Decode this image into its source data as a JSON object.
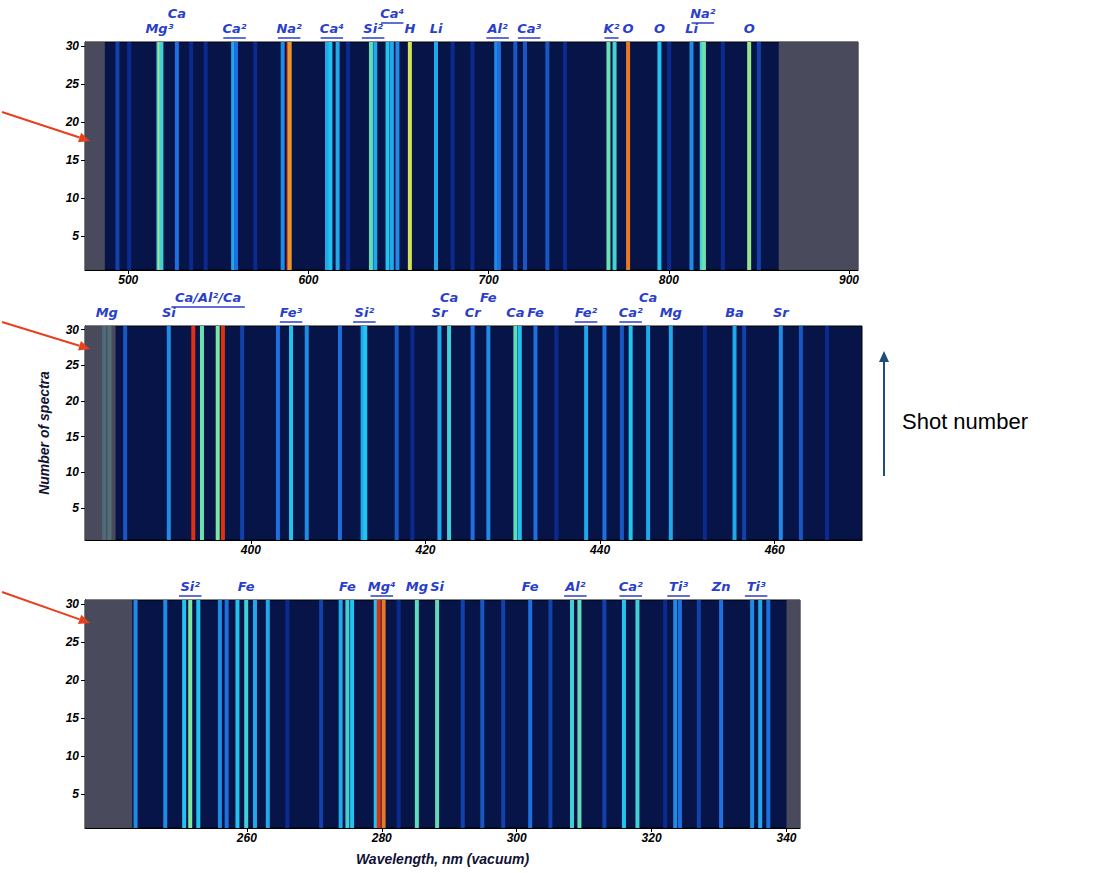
{
  "chart_data": [
    {
      "type": "heatmap",
      "xlim": [
        476,
        905
      ],
      "xticks": [
        500,
        600,
        700,
        800,
        900
      ],
      "ylim": [
        0.5,
        30.5
      ],
      "yticks": [
        5,
        10,
        15,
        20,
        25,
        30
      ],
      "intensity_range": [
        0,
        1
      ],
      "lines": {
        "wavelength": [
          494.0,
          500.5,
          516.7,
          517.3,
          518.4,
          527.0,
          534.9,
          543.0,
          558.2,
          559.8,
          570.5,
          585.7,
          589.0,
          589.6,
          610.3,
          612.2,
          616.2,
          622.0,
          634.7,
          637.1,
          643.9,
          646.3,
          649.4,
          656.3,
          670.8,
          680.0,
          691.0,
          704.2,
          705.7,
          714.8,
          720.2,
          732.6,
          742.4,
          766.5,
          769.9,
          777.4,
          794.8,
          800.2,
          812.6,
          818.3,
          819.5,
          830.0,
          844.6,
          850.0
        ],
        "intensity": [
          0.35,
          0.3,
          0.55,
          0.8,
          0.65,
          0.45,
          0.3,
          0.3,
          0.55,
          0.45,
          0.3,
          0.5,
          1,
          0.93,
          0.55,
          0.6,
          0.55,
          0.3,
          0.7,
          0.55,
          0.6,
          0.55,
          0.5,
          0.85,
          0.55,
          0.3,
          0.3,
          0.5,
          0.45,
          0.4,
          0.4,
          0.4,
          0.3,
          0.72,
          0.66,
          0.95,
          0.6,
          0.3,
          0.5,
          0.65,
          0.72,
          0.3,
          0.78,
          0.35
        ]
      },
      "masked": [
        [
          476,
          487
        ],
        [
          861,
          905
        ]
      ],
      "line_labels": [
        {
          "text": "Mg³",
          "x": 517.3
        },
        {
          "text": "Ca",
          "x": 527.0
        },
        {
          "text": "Ca²",
          "x": 559.0,
          "underline": true
        },
        {
          "text": "Na²",
          "x": 589.3,
          "underline": true
        },
        {
          "text": "Ca⁴",
          "x": 613.0,
          "underline": true
        },
        {
          "text": "Si²",
          "x": 635.9,
          "underline": true
        },
        {
          "text": "Ca⁴",
          "x": 646.5,
          "underline": true
        },
        {
          "text": "H",
          "x": 656.3
        },
        {
          "text": "Li",
          "x": 670.8
        },
        {
          "text": "Al²",
          "x": 705.0,
          "underline": true
        },
        {
          "text": "Ca³",
          "x": 722.5,
          "underline": true
        },
        {
          "text": "K²",
          "x": 768.2,
          "underline": true
        },
        {
          "text": "O",
          "x": 777.4
        },
        {
          "text": "O",
          "x": 794.8
        },
        {
          "text": "Li",
          "x": 812.6
        },
        {
          "text": "Na²",
          "x": 818.9,
          "underline": true
        },
        {
          "text": "O",
          "x": 844.6
        }
      ]
    },
    {
      "type": "heatmap",
      "xlim": [
        381,
        470
      ],
      "xticks": [
        400,
        420,
        440,
        460
      ],
      "ylim": [
        0.5,
        30.5
      ],
      "yticks": [
        5,
        10,
        15,
        20,
        25,
        30
      ],
      "ylabel": "Number of spectra",
      "annotation": "Shot number",
      "intensity_range": [
        0,
        1
      ],
      "lines": {
        "wavelength": [
          383.2,
          383.8,
          385.6,
          390.6,
          393.4,
          394.4,
          396.2,
          396.8,
          399.0,
          403.1,
          404.6,
          406.4,
          410.2,
          412.8,
          413.1,
          416.7,
          418.5,
          421.6,
          422.7,
          425.4,
          427.2,
          430.3,
          430.8,
          432.6,
          435.0,
          438.4,
          440.5,
          442.5,
          443.5,
          445.5,
          448.1,
          452.0,
          455.4,
          456.5,
          460.7,
          463.0,
          466.0
        ],
        "intensity": [
          0.6,
          0.65,
          0.4,
          0.5,
          1,
          0.72,
          0.75,
          1,
          0.35,
          0.45,
          0.6,
          0.5,
          0.45,
          0.55,
          0.6,
          0.4,
          0.3,
          0.55,
          0.65,
          0.45,
          0.5,
          0.7,
          0.6,
          0.45,
          0.3,
          0.55,
          0.45,
          0.4,
          0.6,
          0.55,
          0.55,
          0.3,
          0.55,
          0.35,
          0.5,
          0.4,
          0.3
        ]
      },
      "masked": [
        [
          381,
          384.5
        ]
      ],
      "line_labels": [
        {
          "text": "Mg",
          "x": 383.5
        },
        {
          "text": "Si",
          "x": 390.6
        },
        {
          "text": "Ca/Al²/Ca",
          "x": 395.1,
          "underline": true
        },
        {
          "text": "Fe³",
          "x": 404.6,
          "underline": true
        },
        {
          "text": "Si²",
          "x": 413.0,
          "underline": true
        },
        {
          "text": "Sr",
          "x": 421.6
        },
        {
          "text": "Ca",
          "x": 422.7
        },
        {
          "text": "Cr",
          "x": 425.4
        },
        {
          "text": "Fe",
          "x": 427.2
        },
        {
          "text": "Ca",
          "x": 430.3
        },
        {
          "text": "Fe",
          "x": 432.6
        },
        {
          "text": "Fe²",
          "x": 438.4,
          "underline": true
        },
        {
          "text": "Ca²",
          "x": 443.5,
          "underline": true
        },
        {
          "text": "Ca",
          "x": 445.5
        },
        {
          "text": "Mg",
          "x": 448.1
        },
        {
          "text": "Ba",
          "x": 455.4
        },
        {
          "text": "Sr",
          "x": 460.7
        }
      ]
    },
    {
      "type": "heatmap",
      "xlim": [
        236,
        342
      ],
      "xticks": [
        260,
        280,
        300,
        320,
        340
      ],
      "ylim": [
        0.5,
        30.5
      ],
      "yticks": [
        5,
        10,
        15,
        20,
        25,
        30
      ],
      "xlabel": "Wavelength, nm (vacuum)",
      "intensity_range": [
        0,
        1
      ],
      "lines": {
        "wavelength": [
          243.5,
          247.9,
          250.7,
          251.6,
          252.8,
          256.0,
          257.0,
          258.6,
          259.9,
          261.2,
          263.1,
          266.0,
          271.0,
          273.9,
          274.9,
          275.6,
          279.1,
          279.55,
          280.27,
          282.5,
          285.2,
          288.2,
          292.0,
          294.9,
          298.0,
          302.0,
          305.0,
          308.2,
          309.3,
          313.0,
          315.9,
          317.9,
          322.0,
          323.5,
          324.2,
          327.0,
          330.3,
          334.9,
          336.1,
          337.3
        ],
        "intensity": [
          0.5,
          0.5,
          0.6,
          0.75,
          0.6,
          0.5,
          0.45,
          0.6,
          0.65,
          0.55,
          0.55,
          0.3,
          0.35,
          0.55,
          0.65,
          0.6,
          0.6,
          1,
          0.95,
          0.3,
          0.7,
          0.7,
          0.35,
          0.4,
          0.35,
          0.45,
          0.35,
          0.65,
          0.7,
          0.35,
          0.6,
          0.65,
          0.3,
          0.5,
          0.45,
          0.35,
          0.45,
          0.5,
          0.55,
          0.45
        ]
      },
      "masked": [
        [
          236,
          243
        ],
        [
          340,
          342
        ]
      ],
      "line_labels": [
        {
          "text": "Si²",
          "x": 251.6,
          "underline": true
        },
        {
          "text": "Fe",
          "x": 259.9
        },
        {
          "text": "Fe",
          "x": 274.9
        },
        {
          "text": "Mg⁴",
          "x": 280.0,
          "underline": true
        },
        {
          "text": "Mg",
          "x": 285.2
        },
        {
          "text": "Si",
          "x": 288.2
        },
        {
          "text": "Fe",
          "x": 302.0
        },
        {
          "text": "Al²",
          "x": 308.7,
          "underline": true
        },
        {
          "text": "Ca²",
          "x": 316.9,
          "underline": true
        },
        {
          "text": "Ti³",
          "x": 324.0,
          "underline": true
        },
        {
          "text": "Zn",
          "x": 330.3
        },
        {
          "text": "Ti³",
          "x": 335.5,
          "underline": true
        }
      ]
    }
  ]
}
